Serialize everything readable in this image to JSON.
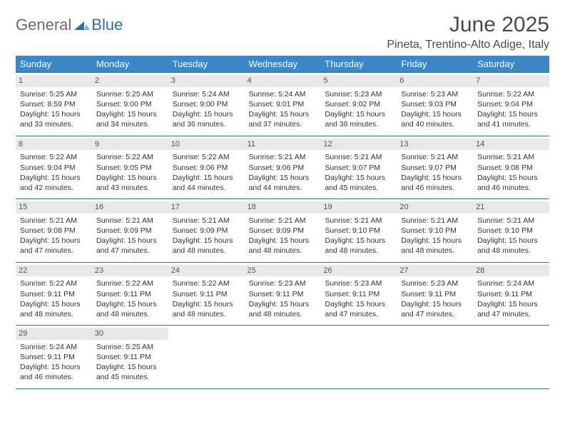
{
  "brand": {
    "part1": "General",
    "part2": "Blue"
  },
  "title": "June 2025",
  "location": "Pineta, Trentino-Alto Adige, Italy",
  "colors": {
    "header_bg": "#3b87c8",
    "header_text": "#ffffff",
    "row_border": "#3b6fa0",
    "daynum_bg": "#e8e8e8",
    "body_text": "#333333",
    "brand_gray": "#6b6b6b",
    "brand_blue": "#2f6fa8"
  },
  "day_headers": [
    "Sunday",
    "Monday",
    "Tuesday",
    "Wednesday",
    "Thursday",
    "Friday",
    "Saturday"
  ],
  "weeks": [
    [
      {
        "n": "1",
        "sunrise": "Sunrise: 5:25 AM",
        "sunset": "Sunset: 8:59 PM",
        "daylight": "Daylight: 15 hours and 33 minutes."
      },
      {
        "n": "2",
        "sunrise": "Sunrise: 5:25 AM",
        "sunset": "Sunset: 9:00 PM",
        "daylight": "Daylight: 15 hours and 34 minutes."
      },
      {
        "n": "3",
        "sunrise": "Sunrise: 5:24 AM",
        "sunset": "Sunset: 9:00 PM",
        "daylight": "Daylight: 15 hours and 36 minutes."
      },
      {
        "n": "4",
        "sunrise": "Sunrise: 5:24 AM",
        "sunset": "Sunset: 9:01 PM",
        "daylight": "Daylight: 15 hours and 37 minutes."
      },
      {
        "n": "5",
        "sunrise": "Sunrise: 5:23 AM",
        "sunset": "Sunset: 9:02 PM",
        "daylight": "Daylight: 15 hours and 38 minutes."
      },
      {
        "n": "6",
        "sunrise": "Sunrise: 5:23 AM",
        "sunset": "Sunset: 9:03 PM",
        "daylight": "Daylight: 15 hours and 40 minutes."
      },
      {
        "n": "7",
        "sunrise": "Sunrise: 5:22 AM",
        "sunset": "Sunset: 9:04 PM",
        "daylight": "Daylight: 15 hours and 41 minutes."
      }
    ],
    [
      {
        "n": "8",
        "sunrise": "Sunrise: 5:22 AM",
        "sunset": "Sunset: 9:04 PM",
        "daylight": "Daylight: 15 hours and 42 minutes."
      },
      {
        "n": "9",
        "sunrise": "Sunrise: 5:22 AM",
        "sunset": "Sunset: 9:05 PM",
        "daylight": "Daylight: 15 hours and 43 minutes."
      },
      {
        "n": "10",
        "sunrise": "Sunrise: 5:22 AM",
        "sunset": "Sunset: 9:06 PM",
        "daylight": "Daylight: 15 hours and 44 minutes."
      },
      {
        "n": "11",
        "sunrise": "Sunrise: 5:21 AM",
        "sunset": "Sunset: 9:06 PM",
        "daylight": "Daylight: 15 hours and 44 minutes."
      },
      {
        "n": "12",
        "sunrise": "Sunrise: 5:21 AM",
        "sunset": "Sunset: 9:07 PM",
        "daylight": "Daylight: 15 hours and 45 minutes."
      },
      {
        "n": "13",
        "sunrise": "Sunrise: 5:21 AM",
        "sunset": "Sunset: 9:07 PM",
        "daylight": "Daylight: 15 hours and 46 minutes."
      },
      {
        "n": "14",
        "sunrise": "Sunrise: 5:21 AM",
        "sunset": "Sunset: 9:08 PM",
        "daylight": "Daylight: 15 hours and 46 minutes."
      }
    ],
    [
      {
        "n": "15",
        "sunrise": "Sunrise: 5:21 AM",
        "sunset": "Sunset: 9:08 PM",
        "daylight": "Daylight: 15 hours and 47 minutes."
      },
      {
        "n": "16",
        "sunrise": "Sunrise: 5:21 AM",
        "sunset": "Sunset: 9:09 PM",
        "daylight": "Daylight: 15 hours and 47 minutes."
      },
      {
        "n": "17",
        "sunrise": "Sunrise: 5:21 AM",
        "sunset": "Sunset: 9:09 PM",
        "daylight": "Daylight: 15 hours and 48 minutes."
      },
      {
        "n": "18",
        "sunrise": "Sunrise: 5:21 AM",
        "sunset": "Sunset: 9:09 PM",
        "daylight": "Daylight: 15 hours and 48 minutes."
      },
      {
        "n": "19",
        "sunrise": "Sunrise: 5:21 AM",
        "sunset": "Sunset: 9:10 PM",
        "daylight": "Daylight: 15 hours and 48 minutes."
      },
      {
        "n": "20",
        "sunrise": "Sunrise: 5:21 AM",
        "sunset": "Sunset: 9:10 PM",
        "daylight": "Daylight: 15 hours and 48 minutes."
      },
      {
        "n": "21",
        "sunrise": "Sunrise: 5:21 AM",
        "sunset": "Sunset: 9:10 PM",
        "daylight": "Daylight: 15 hours and 48 minutes."
      }
    ],
    [
      {
        "n": "22",
        "sunrise": "Sunrise: 5:22 AM",
        "sunset": "Sunset: 9:11 PM",
        "daylight": "Daylight: 15 hours and 48 minutes."
      },
      {
        "n": "23",
        "sunrise": "Sunrise: 5:22 AM",
        "sunset": "Sunset: 9:11 PM",
        "daylight": "Daylight: 15 hours and 48 minutes."
      },
      {
        "n": "24",
        "sunrise": "Sunrise: 5:22 AM",
        "sunset": "Sunset: 9:11 PM",
        "daylight": "Daylight: 15 hours and 48 minutes."
      },
      {
        "n": "25",
        "sunrise": "Sunrise: 5:23 AM",
        "sunset": "Sunset: 9:11 PM",
        "daylight": "Daylight: 15 hours and 48 minutes."
      },
      {
        "n": "26",
        "sunrise": "Sunrise: 5:23 AM",
        "sunset": "Sunset: 9:11 PM",
        "daylight": "Daylight: 15 hours and 47 minutes."
      },
      {
        "n": "27",
        "sunrise": "Sunrise: 5:23 AM",
        "sunset": "Sunset: 9:11 PM",
        "daylight": "Daylight: 15 hours and 47 minutes."
      },
      {
        "n": "28",
        "sunrise": "Sunrise: 5:24 AM",
        "sunset": "Sunset: 9:11 PM",
        "daylight": "Daylight: 15 hours and 47 minutes."
      }
    ],
    [
      {
        "n": "29",
        "sunrise": "Sunrise: 5:24 AM",
        "sunset": "Sunset: 9:11 PM",
        "daylight": "Daylight: 15 hours and 46 minutes."
      },
      {
        "n": "30",
        "sunrise": "Sunrise: 5:25 AM",
        "sunset": "Sunset: 9:11 PM",
        "daylight": "Daylight: 15 hours and 45 minutes."
      },
      null,
      null,
      null,
      null,
      null
    ]
  ]
}
